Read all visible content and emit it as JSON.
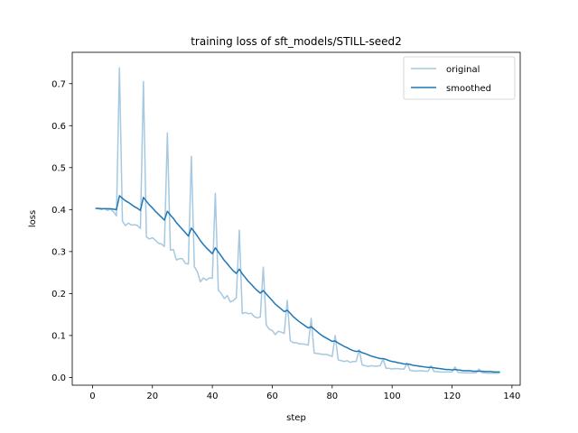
{
  "chart_data": {
    "type": "line",
    "title": "training loss of sft_models/STILL-seed2",
    "xlabel": "step",
    "ylabel": "loss",
    "xlim": [
      -6.75,
      142.75
    ],
    "ylim": [
      -0.0184,
      0.7747
    ],
    "xticks": [
      0,
      20,
      40,
      60,
      80,
      100,
      120,
      140
    ],
    "yticks": [
      0.0,
      0.1,
      0.2,
      0.3,
      0.4,
      0.5,
      0.6,
      0.7
    ],
    "xtick_labels": [
      "0",
      "20",
      "40",
      "60",
      "80",
      "100",
      "120",
      "140"
    ],
    "ytick_labels": [
      "0.0",
      "0.1",
      "0.2",
      "0.3",
      "0.4",
      "0.5",
      "0.6",
      "0.7"
    ],
    "grid": false,
    "legend_position": "top-right",
    "series": [
      {
        "name": "original",
        "color": "#a6c8e0",
        "x": [
          1,
          2,
          3,
          4,
          5,
          6,
          7,
          8,
          9,
          10,
          11,
          12,
          13,
          14,
          15,
          16,
          17,
          18,
          19,
          20,
          21,
          22,
          23,
          24,
          25,
          26,
          27,
          28,
          29,
          30,
          31,
          32,
          33,
          34,
          35,
          36,
          37,
          38,
          39,
          40,
          41,
          42,
          43,
          44,
          45,
          46,
          47,
          48,
          49,
          50,
          51,
          52,
          53,
          54,
          55,
          56,
          57,
          58,
          59,
          60,
          61,
          62,
          63,
          64,
          65,
          66,
          67,
          68,
          69,
          70,
          71,
          72,
          73,
          74,
          75,
          76,
          77,
          78,
          79,
          80,
          81,
          82,
          83,
          84,
          85,
          86,
          87,
          88,
          89,
          90,
          91,
          92,
          93,
          94,
          95,
          96,
          97,
          98,
          99,
          100,
          101,
          102,
          103,
          104,
          105,
          106,
          107,
          108,
          109,
          110,
          111,
          112,
          113,
          114,
          115,
          116,
          117,
          118,
          119,
          120,
          121,
          122,
          123,
          124,
          125,
          126,
          127,
          128,
          129,
          130,
          131,
          132,
          133,
          134,
          135,
          136
        ],
        "y": [
          0.403,
          0.402,
          0.4,
          0.403,
          0.398,
          0.401,
          0.395,
          0.385,
          0.738,
          0.372,
          0.362,
          0.368,
          0.363,
          0.364,
          0.362,
          0.355,
          0.705,
          0.335,
          0.33,
          0.333,
          0.327,
          0.32,
          0.318,
          0.312,
          0.583,
          0.303,
          0.305,
          0.28,
          0.283,
          0.283,
          0.272,
          0.27,
          0.527,
          0.264,
          0.252,
          0.228,
          0.237,
          0.232,
          0.237,
          0.236,
          0.439,
          0.208,
          0.2,
          0.188,
          0.195,
          0.18,
          0.183,
          0.19,
          0.351,
          0.152,
          0.155,
          0.152,
          0.153,
          0.145,
          0.142,
          0.144,
          0.263,
          0.125,
          0.115,
          0.112,
          0.102,
          0.11,
          0.108,
          0.105,
          0.184,
          0.088,
          0.083,
          0.083,
          0.08,
          0.08,
          0.079,
          0.077,
          0.141,
          0.058,
          0.057,
          0.056,
          0.055,
          0.055,
          0.053,
          0.05,
          0.1,
          0.042,
          0.04,
          0.038,
          0.04,
          0.036,
          0.038,
          0.038,
          0.066,
          0.03,
          0.028,
          0.026,
          0.028,
          0.027,
          0.027,
          0.028,
          0.043,
          0.022,
          0.022,
          0.02,
          0.021,
          0.021,
          0.02,
          0.02,
          0.034,
          0.017,
          0.016,
          0.015,
          0.016,
          0.016,
          0.015,
          0.015,
          0.028,
          0.014,
          0.014,
          0.013,
          0.013,
          0.013,
          0.013,
          0.013,
          0.025,
          0.012,
          0.012,
          0.011,
          0.011,
          0.011,
          0.011,
          0.011,
          0.02,
          0.011,
          0.011,
          0.01,
          0.01,
          0.01,
          0.01,
          0.011
        ]
      },
      {
        "name": "smoothed",
        "color": "#1f77b4",
        "x": [
          1,
          2,
          3,
          4,
          5,
          6,
          7,
          8,
          9,
          10,
          11,
          12,
          13,
          14,
          15,
          16,
          17,
          18,
          19,
          20,
          21,
          22,
          23,
          24,
          25,
          26,
          27,
          28,
          29,
          30,
          31,
          32,
          33,
          34,
          35,
          36,
          37,
          38,
          39,
          40,
          41,
          42,
          43,
          44,
          45,
          46,
          47,
          48,
          49,
          50,
          51,
          52,
          53,
          54,
          55,
          56,
          57,
          58,
          59,
          60,
          61,
          62,
          63,
          64,
          65,
          66,
          67,
          68,
          69,
          70,
          71,
          72,
          73,
          74,
          75,
          76,
          77,
          78,
          79,
          80,
          81,
          82,
          83,
          84,
          85,
          86,
          87,
          88,
          89,
          90,
          91,
          92,
          93,
          94,
          95,
          96,
          97,
          98,
          99,
          100,
          101,
          102,
          103,
          104,
          105,
          106,
          107,
          108,
          109,
          110,
          111,
          112,
          113,
          114,
          115,
          116,
          117,
          118,
          119,
          120,
          121,
          122,
          123,
          124,
          125,
          126,
          127,
          128,
          129,
          130,
          131,
          132,
          133,
          134,
          135,
          136
        ],
        "y": [
          0.403,
          0.403,
          0.402,
          0.402,
          0.402,
          0.402,
          0.401,
          0.4,
          0.433,
          0.427,
          0.421,
          0.417,
          0.412,
          0.407,
          0.403,
          0.398,
          0.429,
          0.42,
          0.411,
          0.404,
          0.396,
          0.389,
          0.382,
          0.375,
          0.396,
          0.387,
          0.379,
          0.369,
          0.361,
          0.353,
          0.345,
          0.337,
          0.356,
          0.347,
          0.337,
          0.326,
          0.317,
          0.309,
          0.302,
          0.295,
          0.309,
          0.299,
          0.289,
          0.279,
          0.271,
          0.262,
          0.254,
          0.248,
          0.258,
          0.247,
          0.238,
          0.229,
          0.222,
          0.214,
          0.207,
          0.201,
          0.207,
          0.199,
          0.191,
          0.183,
          0.175,
          0.169,
          0.163,
          0.157,
          0.16,
          0.153,
          0.145,
          0.139,
          0.133,
          0.128,
          0.123,
          0.118,
          0.121,
          0.115,
          0.109,
          0.103,
          0.098,
          0.094,
          0.09,
          0.086,
          0.087,
          0.082,
          0.078,
          0.074,
          0.071,
          0.067,
          0.064,
          0.062,
          0.063,
          0.059,
          0.057,
          0.054,
          0.051,
          0.049,
          0.047,
          0.045,
          0.045,
          0.043,
          0.04,
          0.038,
          0.037,
          0.035,
          0.034,
          0.032,
          0.032,
          0.031,
          0.029,
          0.028,
          0.027,
          0.026,
          0.025,
          0.024,
          0.024,
          0.023,
          0.022,
          0.021,
          0.02,
          0.019,
          0.019,
          0.018,
          0.019,
          0.018,
          0.017,
          0.016,
          0.016,
          0.016,
          0.015,
          0.015,
          0.015,
          0.015,
          0.014,
          0.014,
          0.014,
          0.013,
          0.013,
          0.013
        ]
      }
    ]
  }
}
